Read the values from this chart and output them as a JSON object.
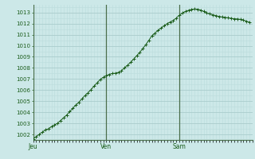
{
  "bg_color": "#cce8e8",
  "line_color": "#1a5c1a",
  "marker_color": "#1a5c1a",
  "grid_color_major": "#aacccc",
  "grid_color_minor": "#bbdddd",
  "tick_label_color": "#1a5c1a",
  "day_line_color": "#4a6e4a",
  "ylim_min": 1001.5,
  "ylim_max": 1013.7,
  "yticks": [
    1002,
    1003,
    1004,
    1005,
    1006,
    1007,
    1008,
    1009,
    1010,
    1011,
    1012,
    1013
  ],
  "day_labels": [
    "Jeu",
    "Ven",
    "Sam"
  ],
  "day_positions": [
    0,
    24,
    48
  ],
  "total_hours": 72,
  "x_data": [
    0,
    1,
    2,
    3,
    4,
    5,
    6,
    7,
    8,
    9,
    10,
    11,
    12,
    13,
    14,
    15,
    16,
    17,
    18,
    19,
    20,
    21,
    22,
    23,
    24,
    25,
    26,
    27,
    28,
    29,
    30,
    31,
    32,
    33,
    34,
    35,
    36,
    37,
    38,
    39,
    40,
    41,
    42,
    43,
    44,
    45,
    46,
    47,
    48,
    49,
    50,
    51,
    52,
    53,
    54,
    55,
    56,
    57,
    58,
    59,
    60,
    61,
    62,
    63,
    64,
    65,
    66,
    67,
    68,
    69,
    70,
    71
  ],
  "y_data": [
    1001.6,
    1001.8,
    1002.0,
    1002.2,
    1002.4,
    1002.5,
    1002.7,
    1002.85,
    1003.0,
    1003.25,
    1003.5,
    1003.75,
    1004.05,
    1004.35,
    1004.65,
    1004.9,
    1005.2,
    1005.5,
    1005.75,
    1006.05,
    1006.35,
    1006.65,
    1006.95,
    1007.15,
    1007.3,
    1007.42,
    1007.5,
    1007.52,
    1007.6,
    1007.75,
    1008.0,
    1008.25,
    1008.5,
    1008.8,
    1009.1,
    1009.4,
    1009.75,
    1010.1,
    1010.5,
    1010.9,
    1011.15,
    1011.38,
    1011.6,
    1011.8,
    1012.0,
    1012.15,
    1012.28,
    1012.5,
    1012.75,
    1012.95,
    1013.1,
    1013.2,
    1013.28,
    1013.32,
    1013.3,
    1013.22,
    1013.1,
    1012.95,
    1012.88,
    1012.8,
    1012.72,
    1012.65,
    1012.6,
    1012.56,
    1012.52,
    1012.48,
    1012.44,
    1012.42,
    1012.38,
    1012.32,
    1012.22,
    1012.12
  ]
}
